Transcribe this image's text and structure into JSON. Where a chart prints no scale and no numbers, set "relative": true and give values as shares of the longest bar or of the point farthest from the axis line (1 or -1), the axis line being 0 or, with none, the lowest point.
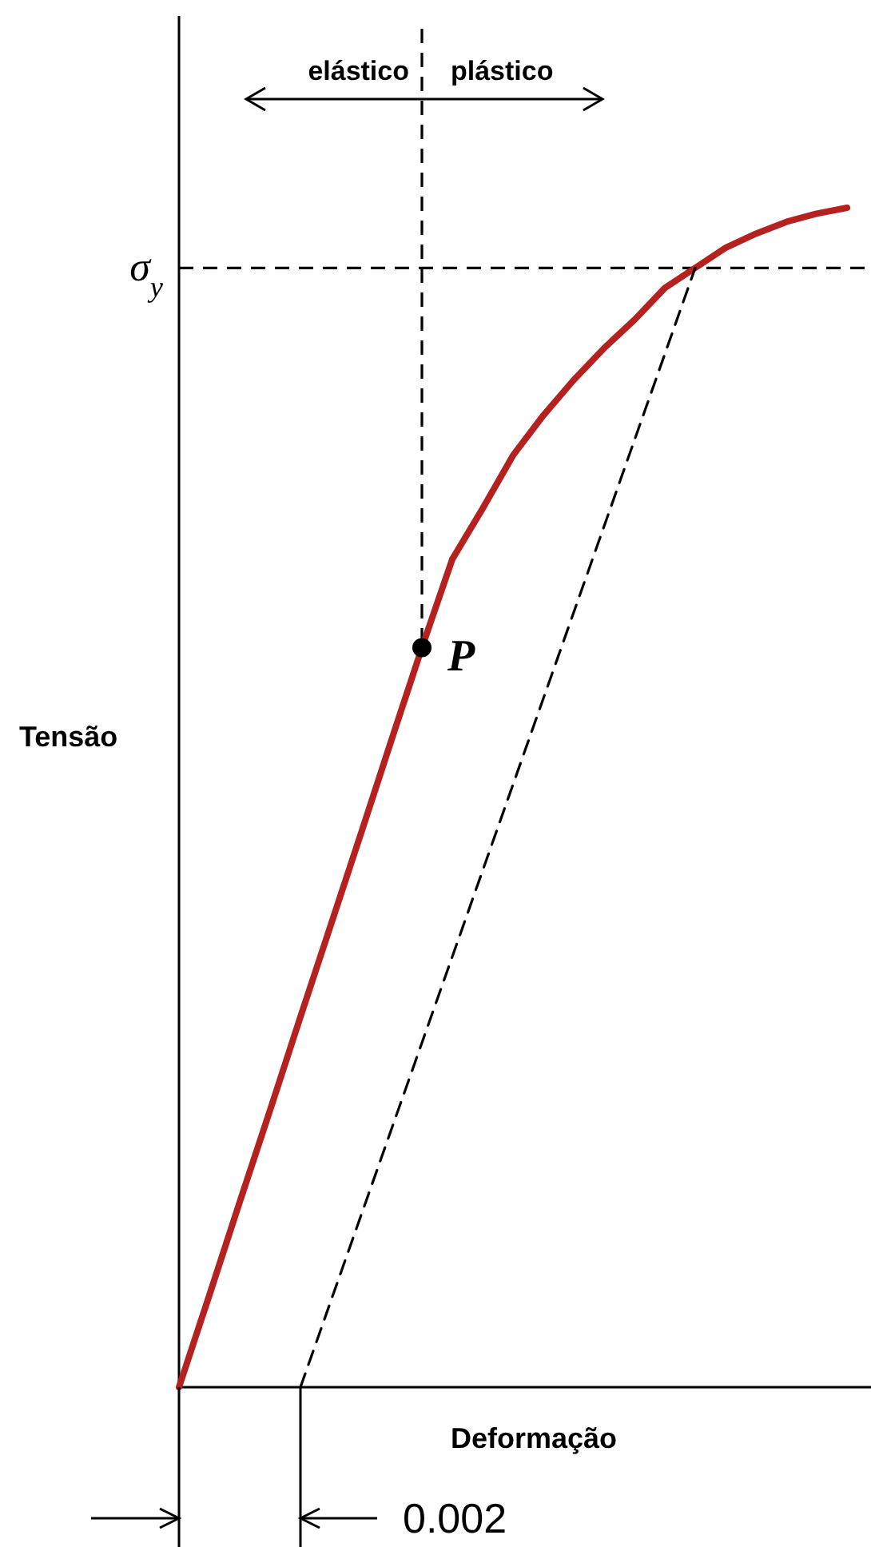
{
  "chart_data": {
    "type": "line",
    "relative": true,
    "xlabel": "Deformação",
    "ylabel": "Tensão",
    "categories": [
      null,
      null,
      null,
      null,
      null,
      null,
      null,
      null,
      null,
      null,
      null,
      null,
      null,
      null,
      null,
      null,
      null,
      null,
      null,
      null,
      null,
      null,
      null
    ],
    "series": [
      {
        "color": "#b5211e",
        "line_style": "solid",
        "values": [
          0,
          0.078,
          0.157,
          0.235,
          0.314,
          0.392,
          0.47,
          0.549,
          0.627,
          0.702,
          0.745,
          0.79,
          0.824,
          0.854,
          0.881,
          0.905,
          0.932,
          0.949,
          0.966,
          0.978,
          0.988,
          0.995,
          1
        ]
      },
      {
        "color": "#000000",
        "line_style": "dashed",
        "values": [
          null,
          null,
          null,
          null,
          0,
          0.073,
          0.146,
          0.219,
          0.292,
          0.365,
          0.438,
          0.511,
          0.584,
          0.657,
          0.73,
          0.803,
          0.876,
          0.949,
          null,
          null,
          null,
          null,
          null
        ]
      },
      {
        "color": "#000000",
        "marker": "circle",
        "values": [
          null,
          null,
          null,
          null,
          null,
          null,
          null,
          null,
          0.627,
          null,
          null,
          null,
          null,
          null,
          null,
          null,
          null,
          null,
          null,
          null,
          null,
          null,
          null
        ]
      }
    ],
    "ref_lines": [
      {
        "axis": "y",
        "value": 0.949,
        "label": "σ$_{y}$",
        "color": "#000000",
        "line_style": "dashed"
      },
      {
        "axis": "x",
        "color": "#000000",
        "line_style": "dashed"
      }
    ],
    "annotations": [
      "P",
      "elástico",
      "plástico",
      "0.002"
    ]
  }
}
